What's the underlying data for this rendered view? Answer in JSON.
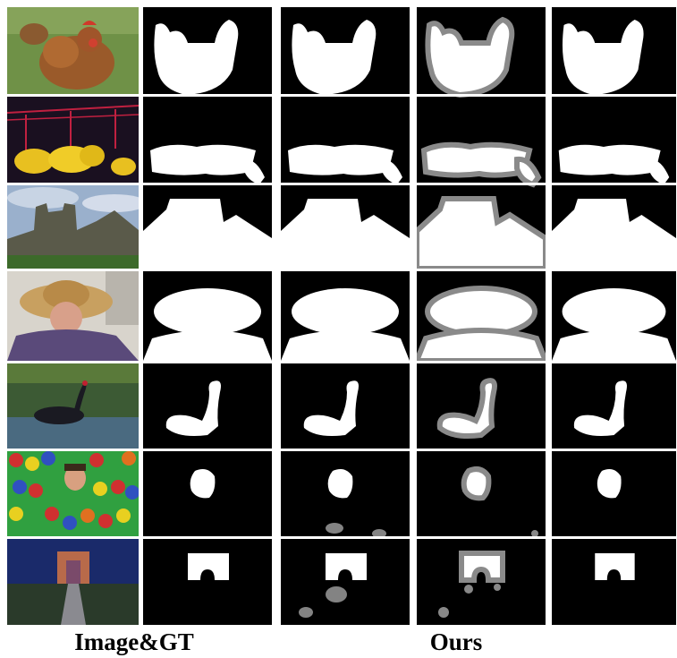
{
  "labels": {
    "left": "Image&GT",
    "right": "Ours"
  },
  "rows": [
    {
      "subject": "hen",
      "palette": [
        "#7a9a4a",
        "#9b5a2a",
        "#c04030"
      ]
    },
    {
      "subject": "bananas",
      "palette": [
        "#1a1020",
        "#e8c020",
        "#c02040"
      ]
    },
    {
      "subject": "castle",
      "palette": [
        "#8aa0c0",
        "#5a5a4a",
        "#3c6a2a"
      ]
    },
    {
      "subject": "person-with-sombrero",
      "palette": [
        "#d8d4cc",
        "#c8a060",
        "#5a4a7a"
      ]
    },
    {
      "subject": "black-swan",
      "palette": [
        "#4a6a3a",
        "#2a3a4a",
        "#6a8aa0"
      ]
    },
    {
      "subject": "ball-pit",
      "palette": [
        "#d03030",
        "#30a040",
        "#3050c0"
      ]
    },
    {
      "subject": "arch-gate",
      "palette": [
        "#1a2a6a",
        "#b86a4a",
        "#3a3a40"
      ]
    }
  ]
}
